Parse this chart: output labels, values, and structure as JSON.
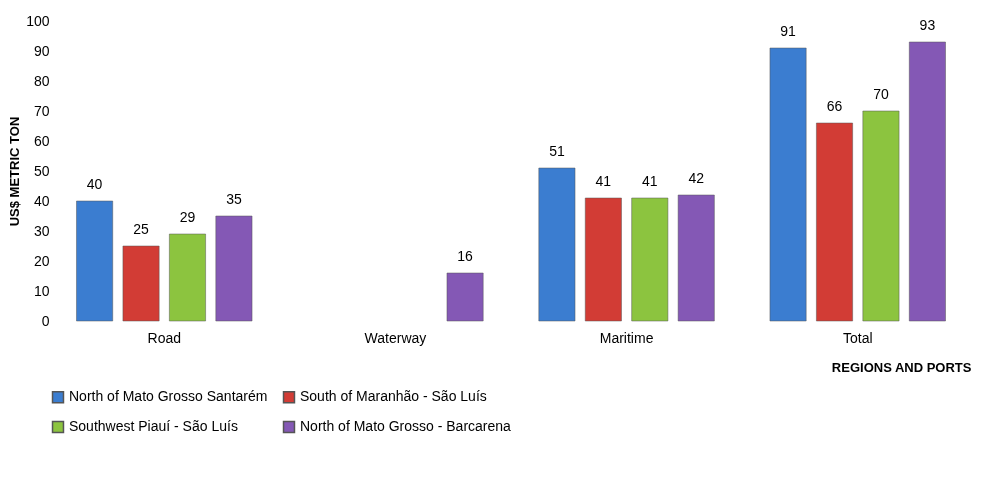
{
  "chart_data": {
    "type": "bar",
    "xlabel": "REGIONS AND PORTS",
    "ylabel": "US$ METRIC TON",
    "categories": [
      "Road",
      "Waterway",
      "Maritime",
      "Total"
    ],
    "series": [
      {
        "name": "North of Mato Grosso Santarém",
        "color": "#3b7dd0",
        "values": [
          40,
          null,
          51,
          91
        ]
      },
      {
        "name": "South of Maranhão - São Luís",
        "color": "#d23c35",
        "values": [
          25,
          null,
          41,
          66
        ]
      },
      {
        "name": "Southwest Piauí - São Luís",
        "color": "#8cc43f",
        "values": [
          29,
          null,
          41,
          70
        ]
      },
      {
        "name": "North of Mato Grosso - Barcarena",
        "color": "#8458b5",
        "values": [
          35,
          16,
          42,
          93
        ]
      }
    ],
    "ylim": [
      0,
      100
    ],
    "yticks": [
      0,
      10,
      20,
      30,
      40,
      50,
      60,
      70,
      80,
      90,
      100
    ],
    "data_labels": true,
    "legend": "bottom",
    "grid": false
  }
}
